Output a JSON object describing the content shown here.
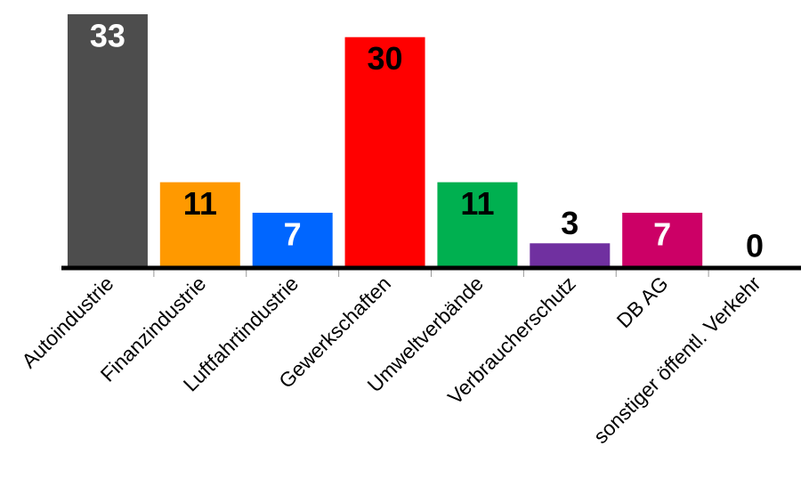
{
  "chart_data": {
    "type": "bar",
    "categories": [
      "Autoindustrie",
      "Finanzindustrie",
      "Luftfahrtindustrie",
      "Gewerkschaften",
      "Umweltverbände",
      "Verbraucherschutz",
      "DB AG",
      "sonstiger öffentl. Verkehr"
    ],
    "values": [
      33,
      11,
      7,
      30,
      11,
      3,
      7,
      0
    ],
    "colors": [
      "#4d4d4d",
      "#ff9900",
      "#0066ff",
      "#ff0000",
      "#00b050",
      "#7030a0",
      "#cc0066",
      "#000000"
    ],
    "label_colors": [
      "#ffffff",
      "#000000",
      "#ffffff",
      "#000000",
      "#000000",
      "#000000",
      "#ffffff",
      "#000000"
    ],
    "ylim": [
      0,
      33
    ]
  }
}
